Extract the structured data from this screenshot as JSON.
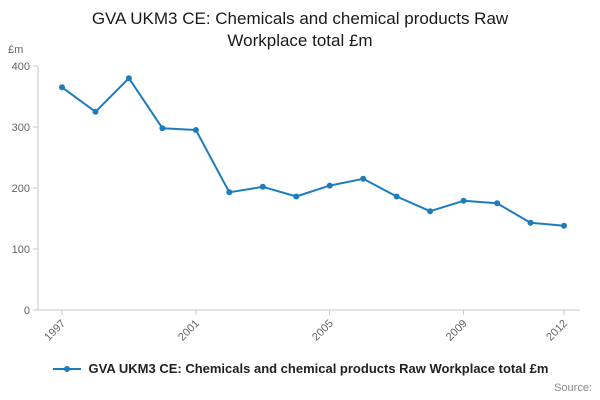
{
  "title": "GVA UKM3 CE: Chemicals and chemical products Raw Workplace total £m",
  "y_unit_label": "£m",
  "source_label": "Source:",
  "legend": {
    "label": "GVA UKM3 CE: Chemicals and chemical products Raw Workplace total £m"
  },
  "colors": {
    "line": "#1d7dbc",
    "axis": "#c9c9c9",
    "tick_text": "#666666",
    "title_text": "#1a1a1a"
  },
  "chart_data": {
    "type": "line",
    "title": "GVA UKM3 CE: Chemicals and chemical products Raw Workplace total £m",
    "x": [
      1997,
      1998,
      1999,
      2000,
      2001,
      2002,
      2003,
      2004,
      2005,
      2006,
      2007,
      2008,
      2009,
      2010,
      2011,
      2012
    ],
    "series": [
      {
        "name": "GVA UKM3 CE: Chemicals and chemical products Raw Workplace total £m",
        "values": [
          365,
          325,
          380,
          298,
          295,
          193,
          202,
          186,
          204,
          215,
          186,
          162,
          179,
          175,
          143,
          138
        ]
      }
    ],
    "xlabel": "",
    "ylabel": "£m",
    "ylim": [
      0,
      400
    ],
    "yticks": [
      0,
      100,
      200,
      300,
      400
    ],
    "xticks": [
      1997,
      2001,
      2005,
      2009,
      2012
    ],
    "grid": false,
    "legend_position": "bottom",
    "marker": "circle"
  }
}
